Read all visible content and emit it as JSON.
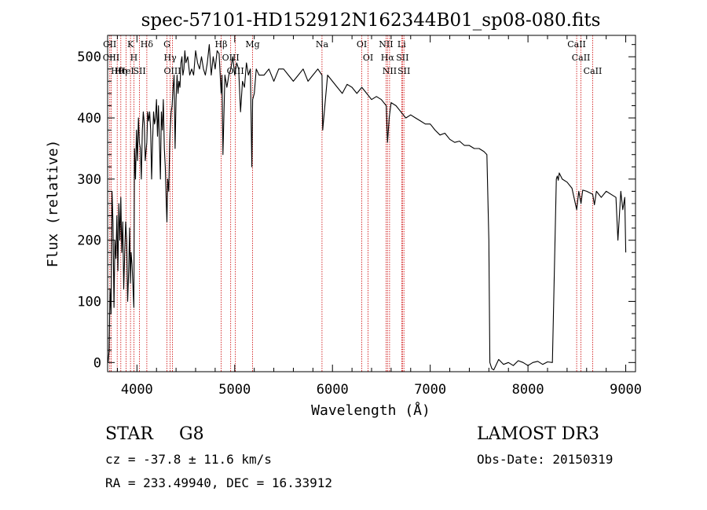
{
  "chart_data": {
    "type": "line",
    "title": "spec-57101-HD152912N162344B01_sp08-080.fits",
    "xlabel": "Wavelength (Å)",
    "ylabel": "Flux (relative)",
    "xlim": [
      3700,
      9100
    ],
    "ylim": [
      -15,
      535
    ],
    "x_ticks": [
      4000,
      5000,
      6000,
      7000,
      8000,
      9000
    ],
    "y_ticks": [
      0,
      100,
      200,
      300,
      400,
      500
    ],
    "grid": false,
    "line_color": "#000000",
    "marker_color": "#cc0000",
    "series": [
      {
        "x": [
          3705,
          3715,
          3725,
          3735,
          3745,
          3755,
          3765,
          3775,
          3785,
          3795,
          3805,
          3815,
          3825,
          3835,
          3845,
          3855,
          3865,
          3875,
          3885,
          3895,
          3905,
          3915,
          3925,
          3933,
          3940,
          3950,
          3960,
          3968,
          3975,
          3985,
          3995,
          4005,
          4015,
          4025,
          4035,
          4045,
          4055,
          4065,
          4075,
          4085,
          4095,
          4101,
          4110,
          4120,
          4130,
          4140,
          4150,
          4160,
          4170,
          4180,
          4190,
          4200,
          4210,
          4220,
          4230,
          4240,
          4250,
          4260,
          4270,
          4280,
          4290,
          4300,
          4307,
          4315,
          4325,
          4335,
          4340,
          4350,
          4360,
          4370,
          4380,
          4390,
          4400,
          4410,
          4420,
          4430,
          4440,
          4450,
          4460,
          4470,
          4480,
          4490,
          4500,
          4520,
          4540,
          4560,
          4580,
          4600,
          4620,
          4640,
          4660,
          4680,
          4700,
          4720,
          4740,
          4760,
          4780,
          4800,
          4820,
          4840,
          4861,
          4870,
          4880,
          4900,
          4920,
          4940,
          4960,
          4980,
          5000,
          5020,
          5040,
          5060,
          5080,
          5100,
          5120,
          5140,
          5160,
          5175,
          5183,
          5200,
          5220,
          5250,
          5300,
          5350,
          5400,
          5450,
          5500,
          5550,
          5600,
          5650,
          5700,
          5750,
          5800,
          5850,
          5893,
          5900,
          5950,
          6000,
          6050,
          6100,
          6150,
          6200,
          6250,
          6300,
          6350,
          6400,
          6450,
          6500,
          6550,
          6563,
          6580,
          6600,
          6650,
          6700,
          6750,
          6800,
          6850,
          6900,
          6950,
          7000,
          7050,
          7100,
          7150,
          7200,
          7250,
          7300,
          7350,
          7400,
          7450,
          7500,
          7550,
          7580,
          7600,
          7610,
          7620,
          7630,
          7650,
          7700,
          7750,
          7800,
          7850,
          7900,
          7950,
          8000,
          8050,
          8100,
          8150,
          8200,
          8250,
          8290,
          8300,
          8310,
          8320,
          8350,
          8400,
          8450,
          8498,
          8520,
          8542,
          8560,
          8600,
          8662,
          8680,
          8700,
          8750,
          8800,
          8850,
          8900,
          8920,
          8950,
          8970,
          8990,
          9000
        ],
        "y": [
          0,
          20,
          120,
          80,
          280,
          230,
          90,
          200,
          170,
          240,
          150,
          260,
          200,
          270,
          180,
          230,
          120,
          180,
          230,
          200,
          100,
          150,
          220,
          130,
          180,
          160,
          120,
          90,
          350,
          300,
          380,
          330,
          400,
          360,
          350,
          300,
          380,
          410,
          390,
          330,
          350,
          360,
          410,
          395,
          410,
          380,
          300,
          360,
          410,
          390,
          400,
          430,
          370,
          420,
          360,
          300,
          410,
          380,
          430,
          350,
          320,
          260,
          230,
          300,
          280,
          360,
          380,
          410,
          420,
          450,
          470,
          350,
          430,
          470,
          440,
          460,
          450,
          490,
          500,
          470,
          480,
          510,
          490,
          500,
          470,
          480,
          470,
          510,
          490,
          480,
          500,
          480,
          470,
          490,
          520,
          470,
          500,
          480,
          510,
          505,
          440,
          470,
          340,
          470,
          450,
          470,
          480,
          500,
          470,
          490,
          480,
          410,
          460,
          450,
          490,
          470,
          480,
          320,
          430,
          440,
          480,
          470,
          470,
          480,
          460,
          480,
          480,
          470,
          460,
          470,
          480,
          460,
          470,
          480,
          470,
          380,
          470,
          460,
          450,
          440,
          455,
          450,
          440,
          450,
          440,
          430,
          435,
          430,
          420,
          360,
          400,
          425,
          420,
          410,
          400,
          405,
          400,
          395,
          390,
          390,
          380,
          372,
          375,
          365,
          360,
          362,
          355,
          355,
          350,
          350,
          345,
          340,
          200,
          0,
          -5,
          -10,
          -12,
          5,
          -3,
          0,
          -5,
          3,
          0,
          -5,
          0,
          2,
          -3,
          1,
          0,
          300,
          305,
          298,
          310,
          300,
          295,
          285,
          250,
          280,
          260,
          282,
          280,
          275,
          258,
          280,
          270,
          280,
          275,
          270,
          200,
          280,
          250,
          270,
          180
        ]
      }
    ],
    "line_markers": [
      {
        "wl": 3722,
        "label": "CII"
      },
      {
        "wl": 3736,
        "label": "CIII"
      },
      {
        "wl": 3798,
        "label": "Hθ"
      },
      {
        "wl": 3835,
        "label": "Hη"
      },
      {
        "wl": 3889,
        "label": "HeI"
      },
      {
        "wl": 3934,
        "label": "K"
      },
      {
        "wl": 3969,
        "label": "H"
      },
      {
        "wl": 4026,
        "label": "SII"
      },
      {
        "wl": 4101,
        "label": "Hδ"
      },
      {
        "wl": 4307,
        "label": "G"
      },
      {
        "wl": 4340,
        "label": "Hγ"
      },
      {
        "wl": 4363,
        "label": "OIII"
      },
      {
        "wl": 4861,
        "label": "Hβ"
      },
      {
        "wl": 4959,
        "label": "OIII"
      },
      {
        "wl": 5007,
        "label": "OIII"
      },
      {
        "wl": 5183,
        "label": "Mg"
      },
      {
        "wl": 5893,
        "label": "Na"
      },
      {
        "wl": 6300,
        "label": "OI"
      },
      {
        "wl": 6364,
        "label": "OI"
      },
      {
        "wl": 6548,
        "label": "NII"
      },
      {
        "wl": 6563,
        "label": "Hα"
      },
      {
        "wl": 6584,
        "label": "NII"
      },
      {
        "wl": 6708,
        "label": "Li"
      },
      {
        "wl": 6716,
        "label": "SII"
      },
      {
        "wl": 6731,
        "label": "SII"
      },
      {
        "wl": 8498,
        "label": "CaII"
      },
      {
        "wl": 8542,
        "label": "CaII"
      },
      {
        "wl": 8662,
        "label": "CaII"
      }
    ]
  },
  "info": {
    "object_class": "STAR",
    "subclass": "G8",
    "survey": "LAMOST DR3",
    "cz": "cz = -37.8 ± 11.6 km/s",
    "obs_date": "Obs-Date: 20150319",
    "coords": "RA = 233.49940, DEC =  16.33912"
  }
}
